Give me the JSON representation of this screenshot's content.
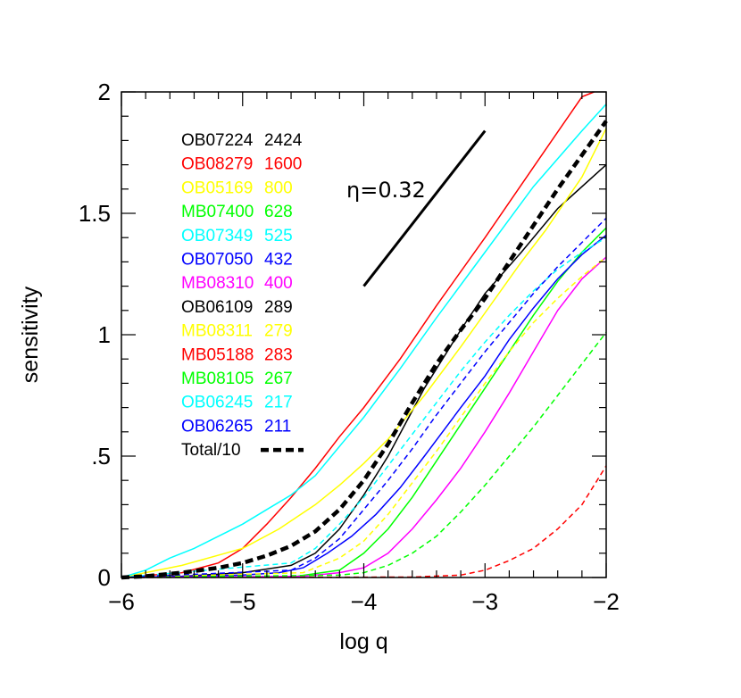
{
  "chart_data": {
    "type": "line",
    "xlabel": "log q",
    "ylabel": "sensitivity",
    "xlim": [
      -6,
      -2
    ],
    "ylim": [
      0,
      2
    ],
    "x_ticks": [
      {
        "v": -6,
        "label": "−6"
      },
      {
        "v": -5,
        "label": "−5"
      },
      {
        "v": -4,
        "label": "−4"
      },
      {
        "v": -3,
        "label": "−3"
      },
      {
        "v": -2,
        "label": "−2"
      }
    ],
    "y_ticks": [
      {
        "v": 0,
        "label": "0"
      },
      {
        "v": 0.5,
        "label": ".5"
      },
      {
        "v": 1,
        "label": "1"
      },
      {
        "v": 1.5,
        "label": "1.5"
      },
      {
        "v": 2,
        "label": "2"
      }
    ],
    "annotation": {
      "text": "η=0.32",
      "line": [
        [
          -4,
          1.2
        ],
        [
          -3,
          1.84
        ]
      ]
    },
    "series": [
      {
        "name": "OB07224",
        "count": "2424",
        "color": "#000000",
        "dash": "solid",
        "width": 1.5,
        "points": [
          [
            -6,
            0
          ],
          [
            -5.5,
            0.005
          ],
          [
            -5,
            0.02
          ],
          [
            -4.6,
            0.05
          ],
          [
            -4.4,
            0.1
          ],
          [
            -4.2,
            0.2
          ],
          [
            -4,
            0.34
          ],
          [
            -3.8,
            0.5
          ],
          [
            -3.5,
            0.78
          ],
          [
            -3.2,
            1.02
          ],
          [
            -3,
            1.17
          ],
          [
            -2.7,
            1.34
          ],
          [
            -2.4,
            1.52
          ],
          [
            -2,
            1.7
          ]
        ]
      },
      {
        "name": "OB08279",
        "count": "1600",
        "color": "#ff0000",
        "dash": "solid",
        "width": 1.5,
        "points": [
          [
            -6,
            0
          ],
          [
            -5.5,
            0.02
          ],
          [
            -5.2,
            0.06
          ],
          [
            -5,
            0.12
          ],
          [
            -4.8,
            0.22
          ],
          [
            -4.6,
            0.33
          ],
          [
            -4.4,
            0.45
          ],
          [
            -4.2,
            0.58
          ],
          [
            -4,
            0.7
          ],
          [
            -3.7,
            0.9
          ],
          [
            -3.4,
            1.12
          ],
          [
            -3,
            1.4
          ],
          [
            -2.6,
            1.69
          ],
          [
            -2.2,
            1.98
          ],
          [
            -2.1,
            2.0
          ]
        ]
      },
      {
        "name": "OB05169",
        "count": "800",
        "color": "#ffff00",
        "dash": "solid",
        "width": 1.5,
        "points": [
          [
            -6,
            0
          ],
          [
            -5.5,
            0.05
          ],
          [
            -5,
            0.12
          ],
          [
            -4.7,
            0.2
          ],
          [
            -4.4,
            0.3
          ],
          [
            -4.2,
            0.38
          ],
          [
            -4,
            0.47
          ],
          [
            -3.8,
            0.57
          ],
          [
            -3.5,
            0.75
          ],
          [
            -3.2,
            0.95
          ],
          [
            -3,
            1.09
          ],
          [
            -2.7,
            1.3
          ],
          [
            -2.5,
            1.43
          ],
          [
            -2.2,
            1.65
          ],
          [
            -2,
            1.85
          ]
        ]
      },
      {
        "name": "MB07400",
        "count": "628",
        "color": "#00ff00",
        "dash": "solid",
        "width": 1.5,
        "points": [
          [
            -6,
            0
          ],
          [
            -4.6,
            0.002
          ],
          [
            -4.2,
            0.03
          ],
          [
            -4,
            0.1
          ],
          [
            -3.8,
            0.2
          ],
          [
            -3.6,
            0.33
          ],
          [
            -3.4,
            0.48
          ],
          [
            -3.2,
            0.63
          ],
          [
            -3,
            0.78
          ],
          [
            -2.8,
            0.93
          ],
          [
            -2.6,
            1.08
          ],
          [
            -2.4,
            1.22
          ],
          [
            -2.2,
            1.34
          ],
          [
            -2,
            1.44
          ]
        ]
      },
      {
        "name": "OB07349",
        "count": "525",
        "color": "#00ffff",
        "dash": "solid",
        "width": 1.5,
        "points": [
          [
            -6,
            0
          ],
          [
            -5.8,
            0.03
          ],
          [
            -5.6,
            0.08
          ],
          [
            -5.4,
            0.12
          ],
          [
            -5.2,
            0.17
          ],
          [
            -5,
            0.22
          ],
          [
            -4.8,
            0.28
          ],
          [
            -4.6,
            0.34
          ],
          [
            -4.4,
            0.42
          ],
          [
            -4.2,
            0.54
          ],
          [
            -4,
            0.66
          ],
          [
            -3.7,
            0.86
          ],
          [
            -3.4,
            1.07
          ],
          [
            -3,
            1.34
          ],
          [
            -2.6,
            1.61
          ],
          [
            -2.2,
            1.84
          ],
          [
            -2,
            1.95
          ]
        ]
      },
      {
        "name": "OB07050",
        "count": "432",
        "color": "#0000ff",
        "dash": "solid",
        "width": 1.5,
        "points": [
          [
            -6,
            0
          ],
          [
            -5,
            0.01
          ],
          [
            -4.7,
            0.02
          ],
          [
            -4.5,
            0.04
          ],
          [
            -4.3,
            0.1
          ],
          [
            -4.1,
            0.17
          ],
          [
            -3.9,
            0.26
          ],
          [
            -3.7,
            0.37
          ],
          [
            -3.5,
            0.5
          ],
          [
            -3.2,
            0.7
          ],
          [
            -3,
            0.83
          ],
          [
            -2.8,
            0.98
          ],
          [
            -2.6,
            1.11
          ],
          [
            -2.4,
            1.23
          ],
          [
            -2.2,
            1.33
          ],
          [
            -2,
            1.41
          ]
        ]
      },
      {
        "name": "MB08310",
        "count": "400",
        "color": "#ff00ff",
        "dash": "solid",
        "width": 1.5,
        "points": [
          [
            -6,
            0
          ],
          [
            -4.5,
            0.005
          ],
          [
            -4.2,
            0.02
          ],
          [
            -4,
            0.04
          ],
          [
            -3.8,
            0.1
          ],
          [
            -3.6,
            0.2
          ],
          [
            -3.4,
            0.32
          ],
          [
            -3.2,
            0.45
          ],
          [
            -3,
            0.6
          ],
          [
            -2.8,
            0.76
          ],
          [
            -2.6,
            0.93
          ],
          [
            -2.4,
            1.1
          ],
          [
            -2.2,
            1.23
          ],
          [
            -2,
            1.32
          ]
        ]
      },
      {
        "name": "OB06109",
        "count": "289",
        "color": "#000000",
        "dash": "solid",
        "width": 1.5,
        "legend_only": true,
        "points": []
      },
      {
        "name": "MB08311",
        "count": "279",
        "color": "#ffff00",
        "dash": "dashed",
        "width": 1.5,
        "points": [
          [
            -6,
            0
          ],
          [
            -4.5,
            0.02
          ],
          [
            -4.2,
            0.08
          ],
          [
            -4,
            0.15
          ],
          [
            -3.8,
            0.26
          ],
          [
            -3.6,
            0.39
          ],
          [
            -3.4,
            0.52
          ],
          [
            -3.2,
            0.66
          ],
          [
            -3,
            0.8
          ],
          [
            -2.8,
            0.93
          ],
          [
            -2.6,
            1.05
          ],
          [
            -2.4,
            1.15
          ],
          [
            -2.2,
            1.24
          ],
          [
            -2,
            1.32
          ]
        ]
      },
      {
        "name": "MB05188",
        "count": "283",
        "color": "#ff0000",
        "dash": "dashed",
        "width": 1.5,
        "points": [
          [
            -6,
            0
          ],
          [
            -3.6,
            0.002
          ],
          [
            -3.2,
            0.01
          ],
          [
            -3,
            0.03
          ],
          [
            -2.8,
            0.07
          ],
          [
            -2.6,
            0.12
          ],
          [
            -2.4,
            0.2
          ],
          [
            -2.2,
            0.3
          ],
          [
            -2,
            0.46
          ]
        ]
      },
      {
        "name": "MB08105",
        "count": "267",
        "color": "#00ff00",
        "dash": "dashed",
        "width": 1.5,
        "points": [
          [
            -6,
            0
          ],
          [
            -4.2,
            0.01
          ],
          [
            -4,
            0.02
          ],
          [
            -3.8,
            0.05
          ],
          [
            -3.6,
            0.1
          ],
          [
            -3.4,
            0.17
          ],
          [
            -3.2,
            0.27
          ],
          [
            -3,
            0.38
          ],
          [
            -2.8,
            0.5
          ],
          [
            -2.6,
            0.62
          ],
          [
            -2.4,
            0.75
          ],
          [
            -2.2,
            0.88
          ],
          [
            -2,
            1.01
          ]
        ]
      },
      {
        "name": "OB06245",
        "count": "217",
        "color": "#00ffff",
        "dash": "dashed",
        "width": 1.5,
        "points": [
          [
            -6,
            0
          ],
          [
            -4.6,
            0.06
          ],
          [
            -4.4,
            0.12
          ],
          [
            -4.2,
            0.22
          ],
          [
            -4,
            0.33
          ],
          [
            -3.8,
            0.46
          ],
          [
            -3.6,
            0.59
          ],
          [
            -3.4,
            0.72
          ],
          [
            -3.2,
            0.85
          ],
          [
            -3,
            0.97
          ],
          [
            -2.8,
            1.08
          ],
          [
            -2.6,
            1.18
          ],
          [
            -2.4,
            1.27
          ],
          [
            -2.2,
            1.34
          ],
          [
            -2,
            1.4
          ]
        ]
      },
      {
        "name": "OB06265",
        "count": "211",
        "color": "#0000ff",
        "dash": "dashed",
        "width": 1.5,
        "points": [
          [
            -6,
            0
          ],
          [
            -4.6,
            0.03
          ],
          [
            -4.4,
            0.08
          ],
          [
            -4.2,
            0.16
          ],
          [
            -4,
            0.28
          ],
          [
            -3.8,
            0.4
          ],
          [
            -3.6,
            0.53
          ],
          [
            -3.4,
            0.67
          ],
          [
            -3.2,
            0.8
          ],
          [
            -3,
            0.93
          ],
          [
            -2.8,
            1.05
          ],
          [
            -2.6,
            1.17
          ],
          [
            -2.4,
            1.28
          ],
          [
            -2.2,
            1.38
          ],
          [
            -2,
            1.48
          ]
        ]
      },
      {
        "name": "Total/10",
        "count": "",
        "color": "#000000",
        "dash": "thick-dashed",
        "width": 4.5,
        "points": [
          [
            -6,
            0
          ],
          [
            -5.8,
            0.005
          ],
          [
            -5.5,
            0.02
          ],
          [
            -5.2,
            0.04
          ],
          [
            -5,
            0.06
          ],
          [
            -4.8,
            0.09
          ],
          [
            -4.6,
            0.13
          ],
          [
            -4.4,
            0.19
          ],
          [
            -4.2,
            0.28
          ],
          [
            -4,
            0.4
          ],
          [
            -3.8,
            0.55
          ],
          [
            -3.6,
            0.72
          ],
          [
            -3.4,
            0.88
          ],
          [
            -3.2,
            1.02
          ],
          [
            -3,
            1.15
          ],
          [
            -2.8,
            1.3
          ],
          [
            -2.6,
            1.45
          ],
          [
            -2.4,
            1.6
          ],
          [
            -2.2,
            1.74
          ],
          [
            -2,
            1.88
          ]
        ]
      }
    ]
  }
}
